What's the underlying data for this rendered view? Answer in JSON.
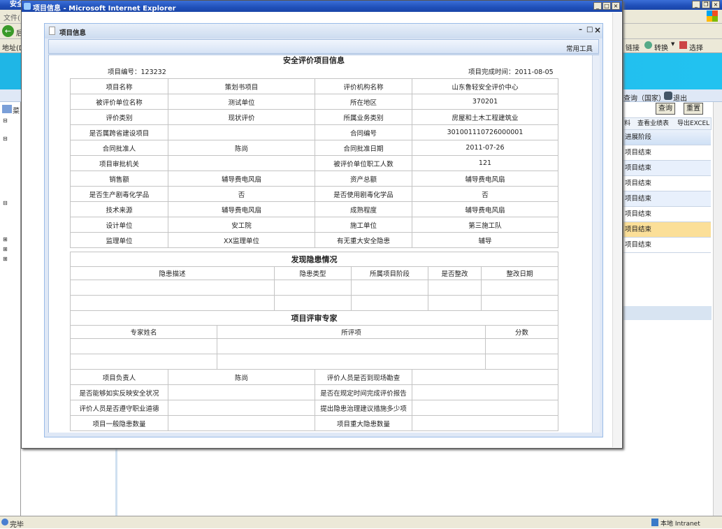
{
  "browser": {
    "title": "安全",
    "menu_file": "文件(",
    "back_label": "后",
    "address_label": "地址(D",
    "tree_root": "菜",
    "links_label": "链接",
    "convert_label": "转换",
    "select_label": "选择",
    "status": "完毕",
    "zone": "本地 Intranet"
  },
  "right_panel": {
    "query_national": "查询（国家）",
    "exit": "退出",
    "query_btn": "查询",
    "reset_btn": "重置",
    "tabs": [
      "料",
      "查看业绩表",
      "导出EXCEL"
    ],
    "column_header": "进展阶段",
    "rows": [
      "项目结束",
      "项目结束",
      "项目结束",
      "项目结束",
      "项目结束",
      "项目结束",
      "项目结束"
    ],
    "selected_row": 5
  },
  "popup": {
    "window_title": "项目信息 - Microsoft Internet Explorer",
    "dialog_title": "项目信息",
    "toolbar_label": "常用工具"
  },
  "report": {
    "title": "安全评价项目信息",
    "project_no": "项目编号：123232",
    "finish_time": "项目完成时间：2011-08-05",
    "main_rows": [
      [
        "项目名称",
        "策划书项目",
        "评价机构名称",
        "山东鲁轻安全评价中心"
      ],
      [
        "被评价单位名称",
        "测试单位",
        "所在地区",
        "370201"
      ],
      [
        "评价类别",
        "现状评价",
        "所属业务类别",
        "房屋和土木工程建筑业"
      ],
      [
        "是否属跨省建设项目",
        "",
        "合同编号",
        "301001110726000001"
      ],
      [
        "合同批准人",
        "陈尚",
        "合同批准日期",
        "2011-07-26"
      ],
      [
        "项目审批机关",
        "",
        "被评价单位职工人数",
        "121"
      ],
      [
        "销售额",
        "辅导费电风扇",
        "资产总额",
        "辅导费电风扇"
      ],
      [
        "是否生产剧毒化学品",
        "否",
        "是否使用剧毒化学品",
        "否"
      ],
      [
        "技术来源",
        "辅导费电风扇",
        "成熟程度",
        "辅导费电风扇"
      ],
      [
        "设计单位",
        "安工院",
        "施工单位",
        "第三施工队"
      ],
      [
        "监理单位",
        "XX监理单位",
        "有无重大安全隐患",
        "辅导"
      ]
    ],
    "hazard_title": "发现隐患情况",
    "hazard_headers": [
      "隐患描述",
      "隐患类型",
      "所属项目阶段",
      "是否整改",
      "整改日期"
    ],
    "expert_title": "项目评审专家",
    "expert_headers": [
      "专家姓名",
      "所评项",
      "分数"
    ],
    "bottom_rows": [
      [
        "项目负责人",
        "陈尚",
        "评价人员是否到现场勘查",
        ""
      ],
      [
        "是否能够如实反映安全状况",
        "",
        "是否在规定时间完成评价报告",
        ""
      ],
      [
        "评价人员是否遵守职业道德",
        "",
        "提出隐患治理建议措施多少项",
        ""
      ],
      [
        "项目一般隐患数量",
        "",
        "项目重大隐患数量",
        ""
      ]
    ]
  }
}
